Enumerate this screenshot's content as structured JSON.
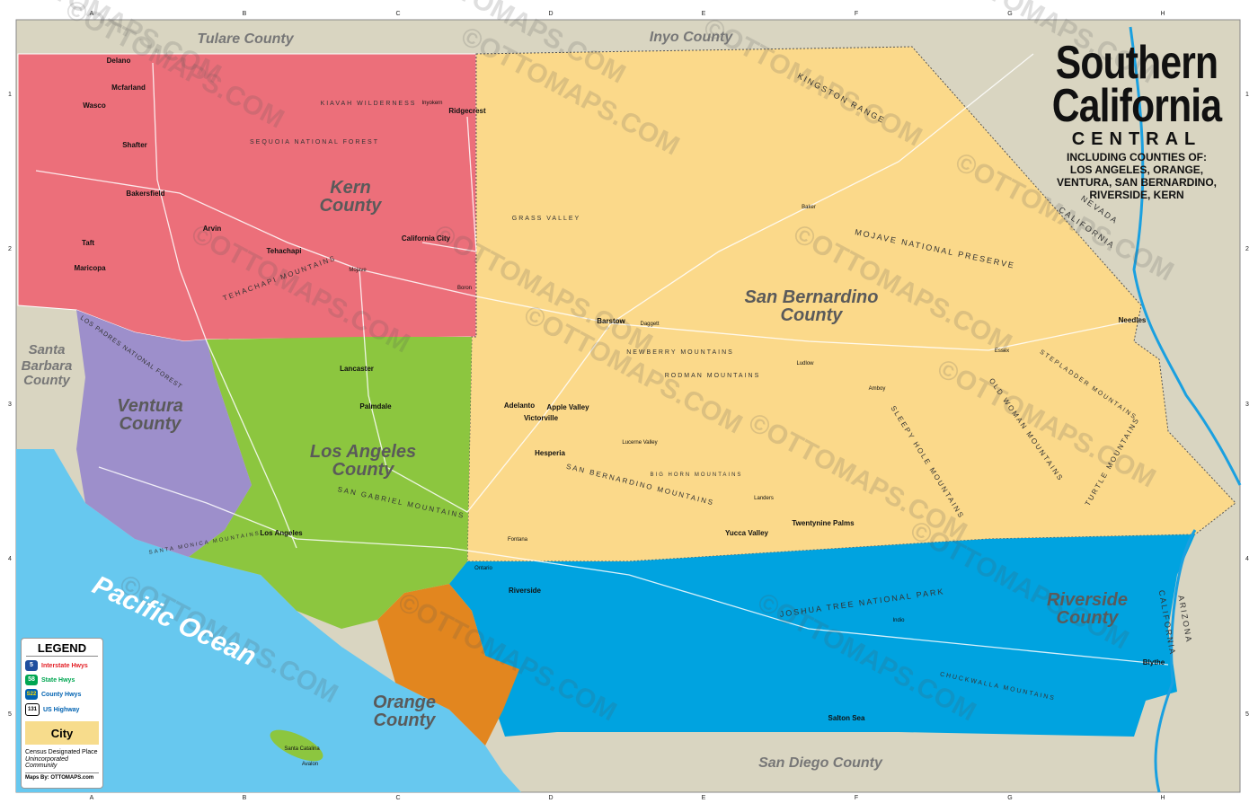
{
  "title": {
    "line1": "Southern",
    "line2": "California",
    "subtitle": "CENTRAL",
    "including_l1": "INCLUDING COUNTIES OF:",
    "including_l2": "LOS ANGELES, ORANGE,",
    "including_l3": "VENTURA, SAN BERNARDINO,",
    "including_l4": "RIVERSIDE, KERN"
  },
  "grid": {
    "columns": [
      "A",
      "B",
      "C",
      "D",
      "E",
      "F",
      "G",
      "H"
    ],
    "rows": [
      "1",
      "2",
      "3",
      "4",
      "5"
    ]
  },
  "colors": {
    "background": "#d9d5c1",
    "ocean": "#67c8ef",
    "kern": "#ec6f7a",
    "san_bernardino": "#fbd98a",
    "los_angeles": "#8cc63f",
    "ventura": "#9d8fcb",
    "riverside": "#00a3e0",
    "orange": "#e2861f",
    "interstate": "#e31e24",
    "state": "#00a651",
    "county": "#0062b1"
  },
  "counties": [
    {
      "name": "Kern",
      "l1": "Kern",
      "l2": "County"
    },
    {
      "name": "San Bernardino",
      "l1": "San Bernardino",
      "l2": "County"
    },
    {
      "name": "Los Angeles",
      "l1": "Los Angeles",
      "l2": "County"
    },
    {
      "name": "Ventura",
      "l1": "Ventura",
      "l2": "County"
    },
    {
      "name": "Riverside",
      "l1": "Riverside",
      "l2": "County"
    },
    {
      "name": "Orange",
      "l1": "Orange",
      "l2": "County"
    }
  ],
  "neighbors": [
    "Tulare County",
    "Inyo County",
    "Santa",
    "Barbara",
    "County",
    "San Diego County"
  ],
  "ocean": "Pacific Ocean",
  "features": [
    "KINGSTON RANGE",
    "MOJAVE NATIONAL PRESERVE",
    "NEWBERRY MOUNTAINS",
    "RODMAN MOUNTAINS",
    "SAN BERNARDINO MOUNTAINS",
    "SAN GABRIEL MOUNTAINS",
    "TEHACHAPI MOUNTAINS",
    "LOS PADRES NATIONAL FOREST",
    "SEQUOIA NATIONAL FOREST",
    "KIAVAH WILDERNESS",
    "JOSHUA TREE NATIONAL PARK",
    "CHUCKWALLA MOUNTAINS",
    "SLEEPY HOLE MOUNTAINS",
    "OLD WOMAN MOUNTAINS",
    "TURTLE MOUNTAINS",
    "STEPLADDER MOUNTAINS",
    "SANTA MONICA MOUNTAINS",
    "GRASS VALLEY",
    "BIG HORN MOUNTAINS",
    "NEVADA",
    "CALIFORNIA",
    "ARIZONA",
    "CALIFORNIA"
  ],
  "cities": [
    "Delano",
    "Mcfarland",
    "Wasco",
    "Shafter",
    "Bakersfield",
    "Arvin",
    "Taft",
    "Maricopa",
    "Tehachapi",
    "Ridgecrest",
    "California City",
    "Barstow",
    "Needles",
    "Victorville",
    "Hesperia",
    "Apple Valley",
    "Adelanto",
    "Lancaster",
    "Palmdale",
    "Los Angeles",
    "Riverside",
    "Twentynine Palms",
    "Yucca Valley",
    "Blythe",
    "Salton Sea",
    "Avalon",
    "Santa Catalina",
    "Inyokern",
    "Boron",
    "Mojave",
    "Baker",
    "Essex",
    "Amboy",
    "Ludlow",
    "Daggett",
    "Lucerne Valley",
    "Landers",
    "Indio",
    "Ontario",
    "Fontana"
  ],
  "legend": {
    "title": "LEGEND",
    "items": [
      {
        "badge": "5",
        "label": "Interstate Hwys"
      },
      {
        "badge": "58",
        "label": "State Hwys"
      },
      {
        "badge": "S22",
        "label": "County Hwys"
      },
      {
        "badge": "131",
        "label": "US Highway"
      }
    ],
    "city": "City",
    "cdp": "Census Designated Place",
    "uncorporated": "Unincorporated Community",
    "maps_by": "Maps By: OTTOMAPS.com"
  },
  "watermark": "©OTTOMAPS.COM"
}
